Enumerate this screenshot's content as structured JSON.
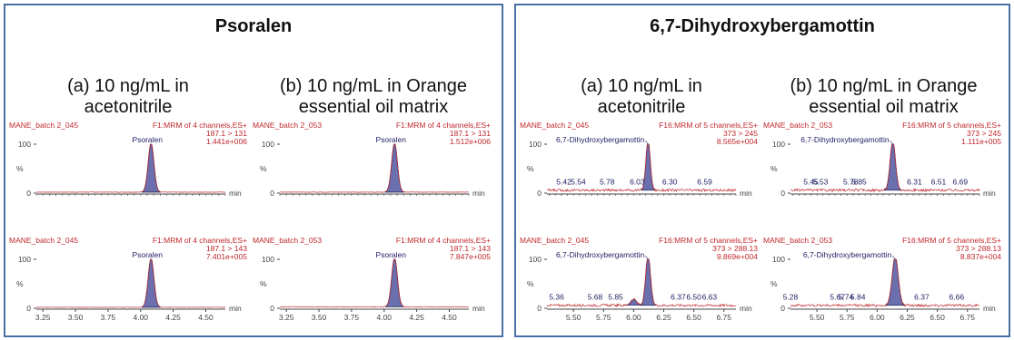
{
  "panels": [
    {
      "title": "Psoralen",
      "columns": [
        {
          "title_line1": "(a) 10 ng/mL in",
          "title_line2": "acetonitrile"
        },
        {
          "title_line1": "(b) 10 ng/mL in Orange",
          "title_line2": "essential  oil matrix"
        }
      ]
    },
    {
      "title": "6,7-Dihydroxybergamottin",
      "columns": [
        {
          "title_line1": "(a) 10 ng/mL in",
          "title_line2": "acetonitrile"
        },
        {
          "title_line1": "(b) 10 ng/mL in Orange",
          "title_line2": "essential  oil matrix"
        }
      ]
    }
  ],
  "chart_data": [
    {
      "type": "line",
      "panel": 0,
      "col": 0,
      "row": 0,
      "sample": "MANE_batch 2_045",
      "function": "F1:MRM of 4 channels,ES+",
      "transition": "187.1 > 131",
      "intensity": "1.441e+006",
      "peak_label": "Psoralen",
      "y_axis": "%",
      "y_max_label": "100",
      "y_min_label": "0",
      "x_unit": "min",
      "xlim": [
        3.2,
        4.65
      ],
      "x_ticks": [],
      "baseline": 2,
      "noise": 0.4,
      "peaks": [
        {
          "x": 4.08,
          "height": 100,
          "width": 0.022
        }
      ],
      "labels": []
    },
    {
      "type": "line",
      "panel": 0,
      "col": 0,
      "row": 1,
      "sample": "MANE_batch 2_045",
      "function": "F1:MRM of 4 channels,ES+",
      "transition": "187.1 > 143",
      "intensity": "7.401e+005",
      "peak_label": "Psoralen",
      "y_axis": "%",
      "y_max_label": "100",
      "y_min_label": "0",
      "x_unit": "min",
      "xlim": [
        3.2,
        4.65
      ],
      "x_ticks": [
        "3.25",
        "3.50",
        "3.75",
        "4.00",
        "4.25",
        "4.50"
      ],
      "baseline": 2,
      "noise": 0.4,
      "peaks": [
        {
          "x": 4.08,
          "height": 100,
          "width": 0.022
        }
      ],
      "labels": []
    },
    {
      "type": "line",
      "panel": 0,
      "col": 1,
      "row": 0,
      "sample": "MANE_batch 2_053",
      "function": "F1:MRM of 4 channels,ES+",
      "transition": "187.1 > 131",
      "intensity": "1.512e+006",
      "peak_label": "Psoralen",
      "y_axis": "%",
      "y_max_label": "100",
      "y_min_label": "0",
      "x_unit": "min",
      "xlim": [
        3.2,
        4.65
      ],
      "x_ticks": [],
      "baseline": 2,
      "noise": 0.4,
      "peaks": [
        {
          "x": 4.08,
          "height": 100,
          "width": 0.022
        }
      ],
      "labels": []
    },
    {
      "type": "line",
      "panel": 0,
      "col": 1,
      "row": 1,
      "sample": "MANE_batch 2_053",
      "function": "F1:MRM of 4 channels,ES+",
      "transition": "187.1 > 143",
      "intensity": "7.847e+005",
      "peak_label": "Psoralen",
      "y_axis": "%",
      "y_max_label": "100",
      "y_min_label": "0",
      "x_unit": "min",
      "xlim": [
        3.2,
        4.65
      ],
      "x_ticks": [
        "3.25",
        "3.50",
        "3.75",
        "4.00",
        "4.25",
        "4.50"
      ],
      "baseline": 3,
      "noise": 0.5,
      "peaks": [
        {
          "x": 4.08,
          "height": 100,
          "width": 0.022
        }
      ],
      "labels": []
    },
    {
      "type": "line",
      "panel": 1,
      "col": 0,
      "row": 0,
      "sample": "MANE_batch 2_045",
      "function": "F16:MRM of 5 channels,ES+",
      "transition": "373 > 245",
      "intensity": "8.565e+004",
      "peak_label": "6,7-Dihydroxybergamottin",
      "y_axis": "%",
      "y_max_label": "100",
      "y_min_label": "0",
      "x_unit": "min",
      "xlim": [
        5.28,
        6.85
      ],
      "x_ticks": [],
      "baseline": 6,
      "noise": 2.5,
      "peaks": [
        {
          "x": 6.12,
          "height": 100,
          "width": 0.018
        }
      ],
      "labels": [
        {
          "x": 5.42,
          "text": "5.42"
        },
        {
          "x": 5.54,
          "text": "5.54"
        },
        {
          "x": 5.78,
          "text": "5.78"
        },
        {
          "x": 6.03,
          "text": "6.03"
        },
        {
          "x": 6.3,
          "text": "6.30"
        },
        {
          "x": 6.59,
          "text": "6.59"
        }
      ]
    },
    {
      "type": "line",
      "panel": 1,
      "col": 0,
      "row": 1,
      "sample": "MANE_batch 2_045",
      "function": "F16:MRM of 5 channels,ES+",
      "transition": "373 > 288.13",
      "intensity": "9.869e+004",
      "peak_label": "6,7-Dihydroxybergamottin",
      "y_axis": "%",
      "y_max_label": "100",
      "y_min_label": "0",
      "x_unit": "min",
      "xlim": [
        5.28,
        6.85
      ],
      "x_ticks": [
        "5.50",
        "5.75",
        "6.00",
        "6.25",
        "6.50",
        "6.75"
      ],
      "baseline": 6,
      "noise": 2.5,
      "peaks": [
        {
          "x": 6.12,
          "height": 100,
          "width": 0.02
        },
        {
          "x": 6.0,
          "height": 12,
          "width": 0.025
        }
      ],
      "labels": [
        {
          "x": 5.36,
          "text": "5.36"
        },
        {
          "x": 5.68,
          "text": "5.68"
        },
        {
          "x": 5.85,
          "text": "5.85"
        },
        {
          "x": 6.37,
          "text": "6.37"
        },
        {
          "x": 6.5,
          "text": "6.50"
        },
        {
          "x": 6.63,
          "text": "6.63"
        }
      ]
    },
    {
      "type": "line",
      "panel": 1,
      "col": 1,
      "row": 0,
      "sample": "MANE_batch 2_053",
      "function": "F16:MRM of 5 channels,ES+",
      "transition": "373 > 245",
      "intensity": "1.111e+005",
      "peak_label": "6,7-Dihydroxybergamottin",
      "y_axis": "%",
      "y_max_label": "100",
      "y_min_label": "0",
      "x_unit": "min",
      "xlim": [
        5.28,
        6.85
      ],
      "x_ticks": [],
      "baseline": 6,
      "noise": 2.5,
      "peaks": [
        {
          "x": 6.13,
          "height": 100,
          "width": 0.022
        }
      ],
      "labels": [
        {
          "x": 5.45,
          "text": "5.45"
        },
        {
          "x": 5.53,
          "text": "5.53"
        },
        {
          "x": 5.78,
          "text": "5.78"
        },
        {
          "x": 5.85,
          "text": "5.85"
        },
        {
          "x": 6.31,
          "text": "6.31"
        },
        {
          "x": 6.51,
          "text": "6.51"
        },
        {
          "x": 6.69,
          "text": "6.69"
        }
      ]
    },
    {
      "type": "line",
      "panel": 1,
      "col": 1,
      "row": 1,
      "sample": "MANE_batch 2_053",
      "function": "F16:MRM of 5 channels,ES+",
      "transition": "373 > 288.13",
      "intensity": "8.837e+004",
      "peak_label": "6,7-Dihydroxybergamottin",
      "y_axis": "%",
      "y_max_label": "100",
      "y_min_label": "0",
      "x_unit": "min",
      "xlim": [
        5.28,
        6.85
      ],
      "x_ticks": [
        "5.50",
        "5.75",
        "6.00",
        "6.25",
        "6.50",
        "6.75"
      ],
      "baseline": 6,
      "noise": 2.5,
      "peaks": [
        {
          "x": 6.15,
          "height": 100,
          "width": 0.025
        }
      ],
      "labels": [
        {
          "x": 5.28,
          "text": "5.28"
        },
        {
          "x": 5.67,
          "text": "5.67"
        },
        {
          "x": 5.74,
          "text": "5.74"
        },
        {
          "x": 5.84,
          "text": "5.84"
        },
        {
          "x": 6.37,
          "text": "6.37"
        },
        {
          "x": 6.66,
          "text": "6.66"
        }
      ]
    }
  ],
  "colors": {
    "header_red": "#c0282d",
    "trace": "#c0282d",
    "peak_fill": "#6b6fae",
    "peak_stroke": "#1f2a5a",
    "axis": "#444444",
    "text": "#222266",
    "frame": "#4a6fa5"
  }
}
